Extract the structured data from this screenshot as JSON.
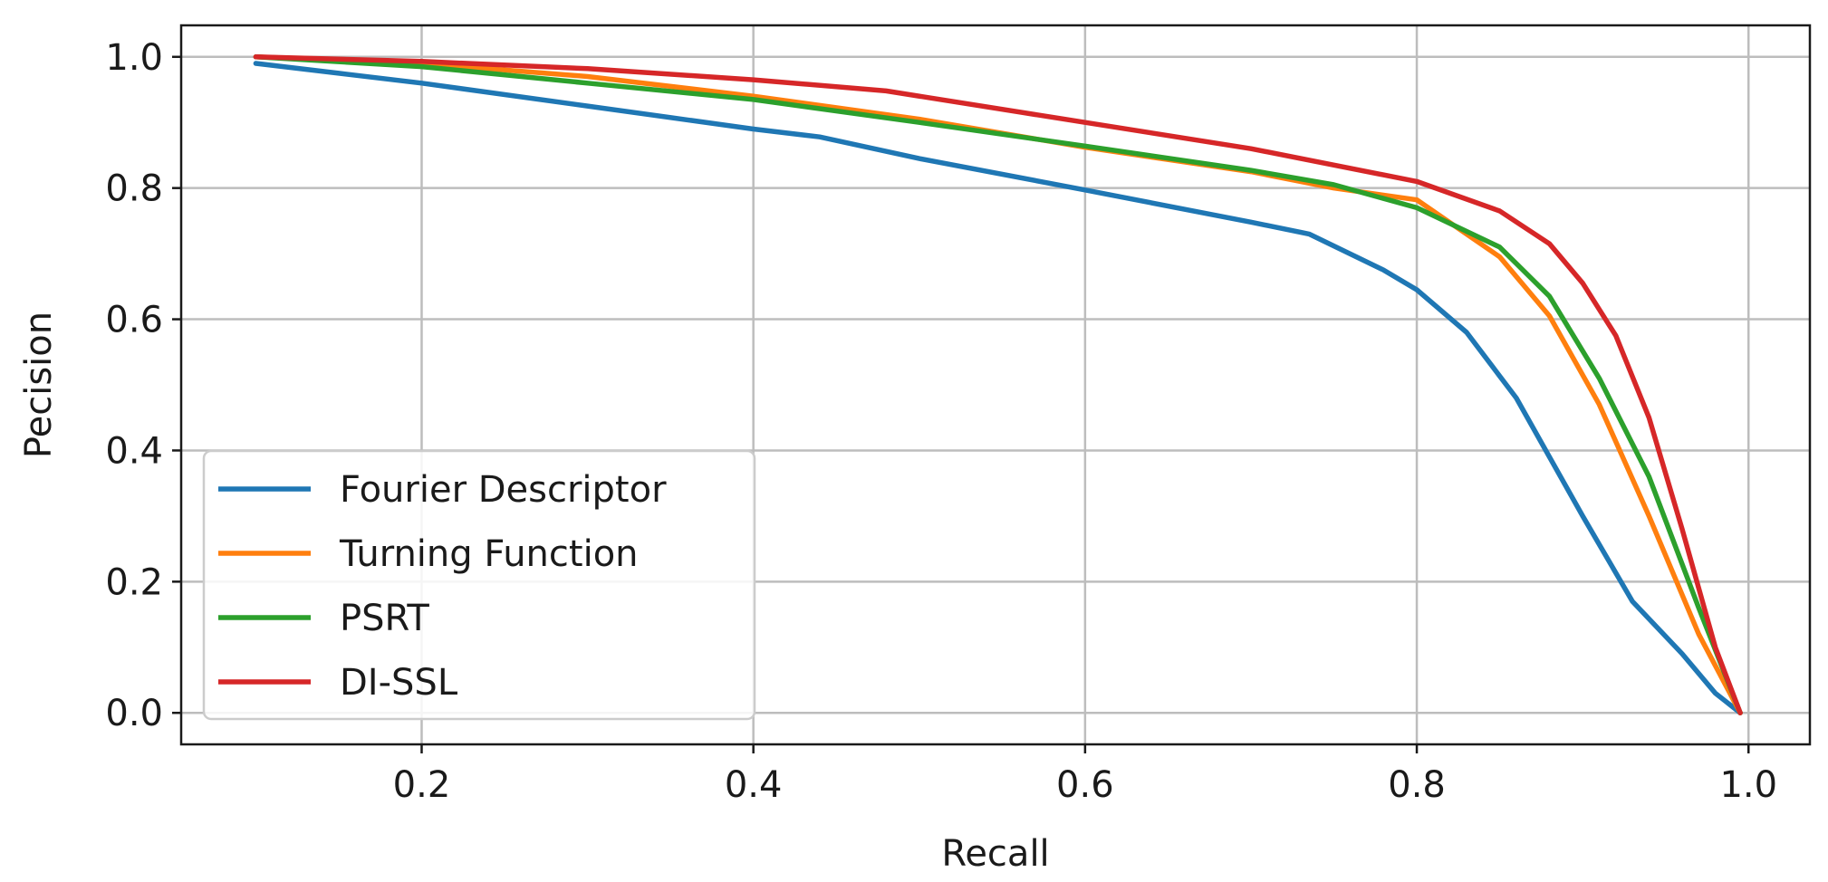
{
  "chart_data": {
    "type": "line",
    "title": "",
    "xlabel": "Recall",
    "ylabel": "Pecision",
    "xlim": [
      0.055,
      1.037
    ],
    "ylim": [
      -0.048,
      1.048
    ],
    "xticks": [
      0.2,
      0.4,
      0.6,
      0.8,
      1.0
    ],
    "xtick_labels": [
      "0.2",
      "0.4",
      "0.6",
      "0.8",
      "1.0"
    ],
    "yticks": [
      0.0,
      0.2,
      0.4,
      0.6,
      0.8,
      1.0
    ],
    "ytick_labels": [
      "0.0",
      "0.2",
      "0.4",
      "0.6",
      "0.8",
      "1.0"
    ],
    "grid": true,
    "legend_position": "lower-left",
    "series": [
      {
        "name": "Fourier Descriptor",
        "color": "#1f77b4",
        "x": [
          0.1,
          0.15,
          0.2,
          0.3,
          0.4,
          0.44,
          0.5,
          0.6,
          0.7,
          0.735,
          0.78,
          0.8,
          0.83,
          0.86,
          0.9,
          0.93,
          0.96,
          0.98,
          0.995
        ],
        "y": [
          0.99,
          0.975,
          0.96,
          0.925,
          0.89,
          0.878,
          0.845,
          0.797,
          0.748,
          0.73,
          0.675,
          0.645,
          0.58,
          0.48,
          0.3,
          0.17,
          0.09,
          0.03,
          0.0
        ]
      },
      {
        "name": "Turning Function",
        "color": "#ff7f0e",
        "x": [
          0.1,
          0.2,
          0.3,
          0.4,
          0.5,
          0.6,
          0.7,
          0.75,
          0.8,
          0.85,
          0.88,
          0.91,
          0.94,
          0.97,
          0.995
        ],
        "y": [
          1.0,
          0.99,
          0.97,
          0.94,
          0.905,
          0.862,
          0.825,
          0.8,
          0.782,
          0.695,
          0.605,
          0.47,
          0.3,
          0.12,
          0.0
        ]
      },
      {
        "name": "PSRT",
        "color": "#2ca02c",
        "x": [
          0.1,
          0.2,
          0.3,
          0.4,
          0.5,
          0.6,
          0.7,
          0.75,
          0.8,
          0.85,
          0.88,
          0.91,
          0.94,
          0.97,
          0.995
        ],
        "y": [
          1.0,
          0.985,
          0.96,
          0.935,
          0.9,
          0.864,
          0.827,
          0.805,
          0.77,
          0.71,
          0.635,
          0.51,
          0.36,
          0.16,
          0.0
        ]
      },
      {
        "name": "DI-SSL",
        "color": "#d62728",
        "x": [
          0.1,
          0.2,
          0.3,
          0.4,
          0.48,
          0.6,
          0.7,
          0.8,
          0.85,
          0.88,
          0.9,
          0.92,
          0.94,
          0.96,
          0.98,
          0.995
        ],
        "y": [
          1.0,
          0.993,
          0.982,
          0.965,
          0.948,
          0.9,
          0.86,
          0.81,
          0.765,
          0.715,
          0.655,
          0.575,
          0.45,
          0.28,
          0.1,
          0.0
        ]
      }
    ]
  }
}
